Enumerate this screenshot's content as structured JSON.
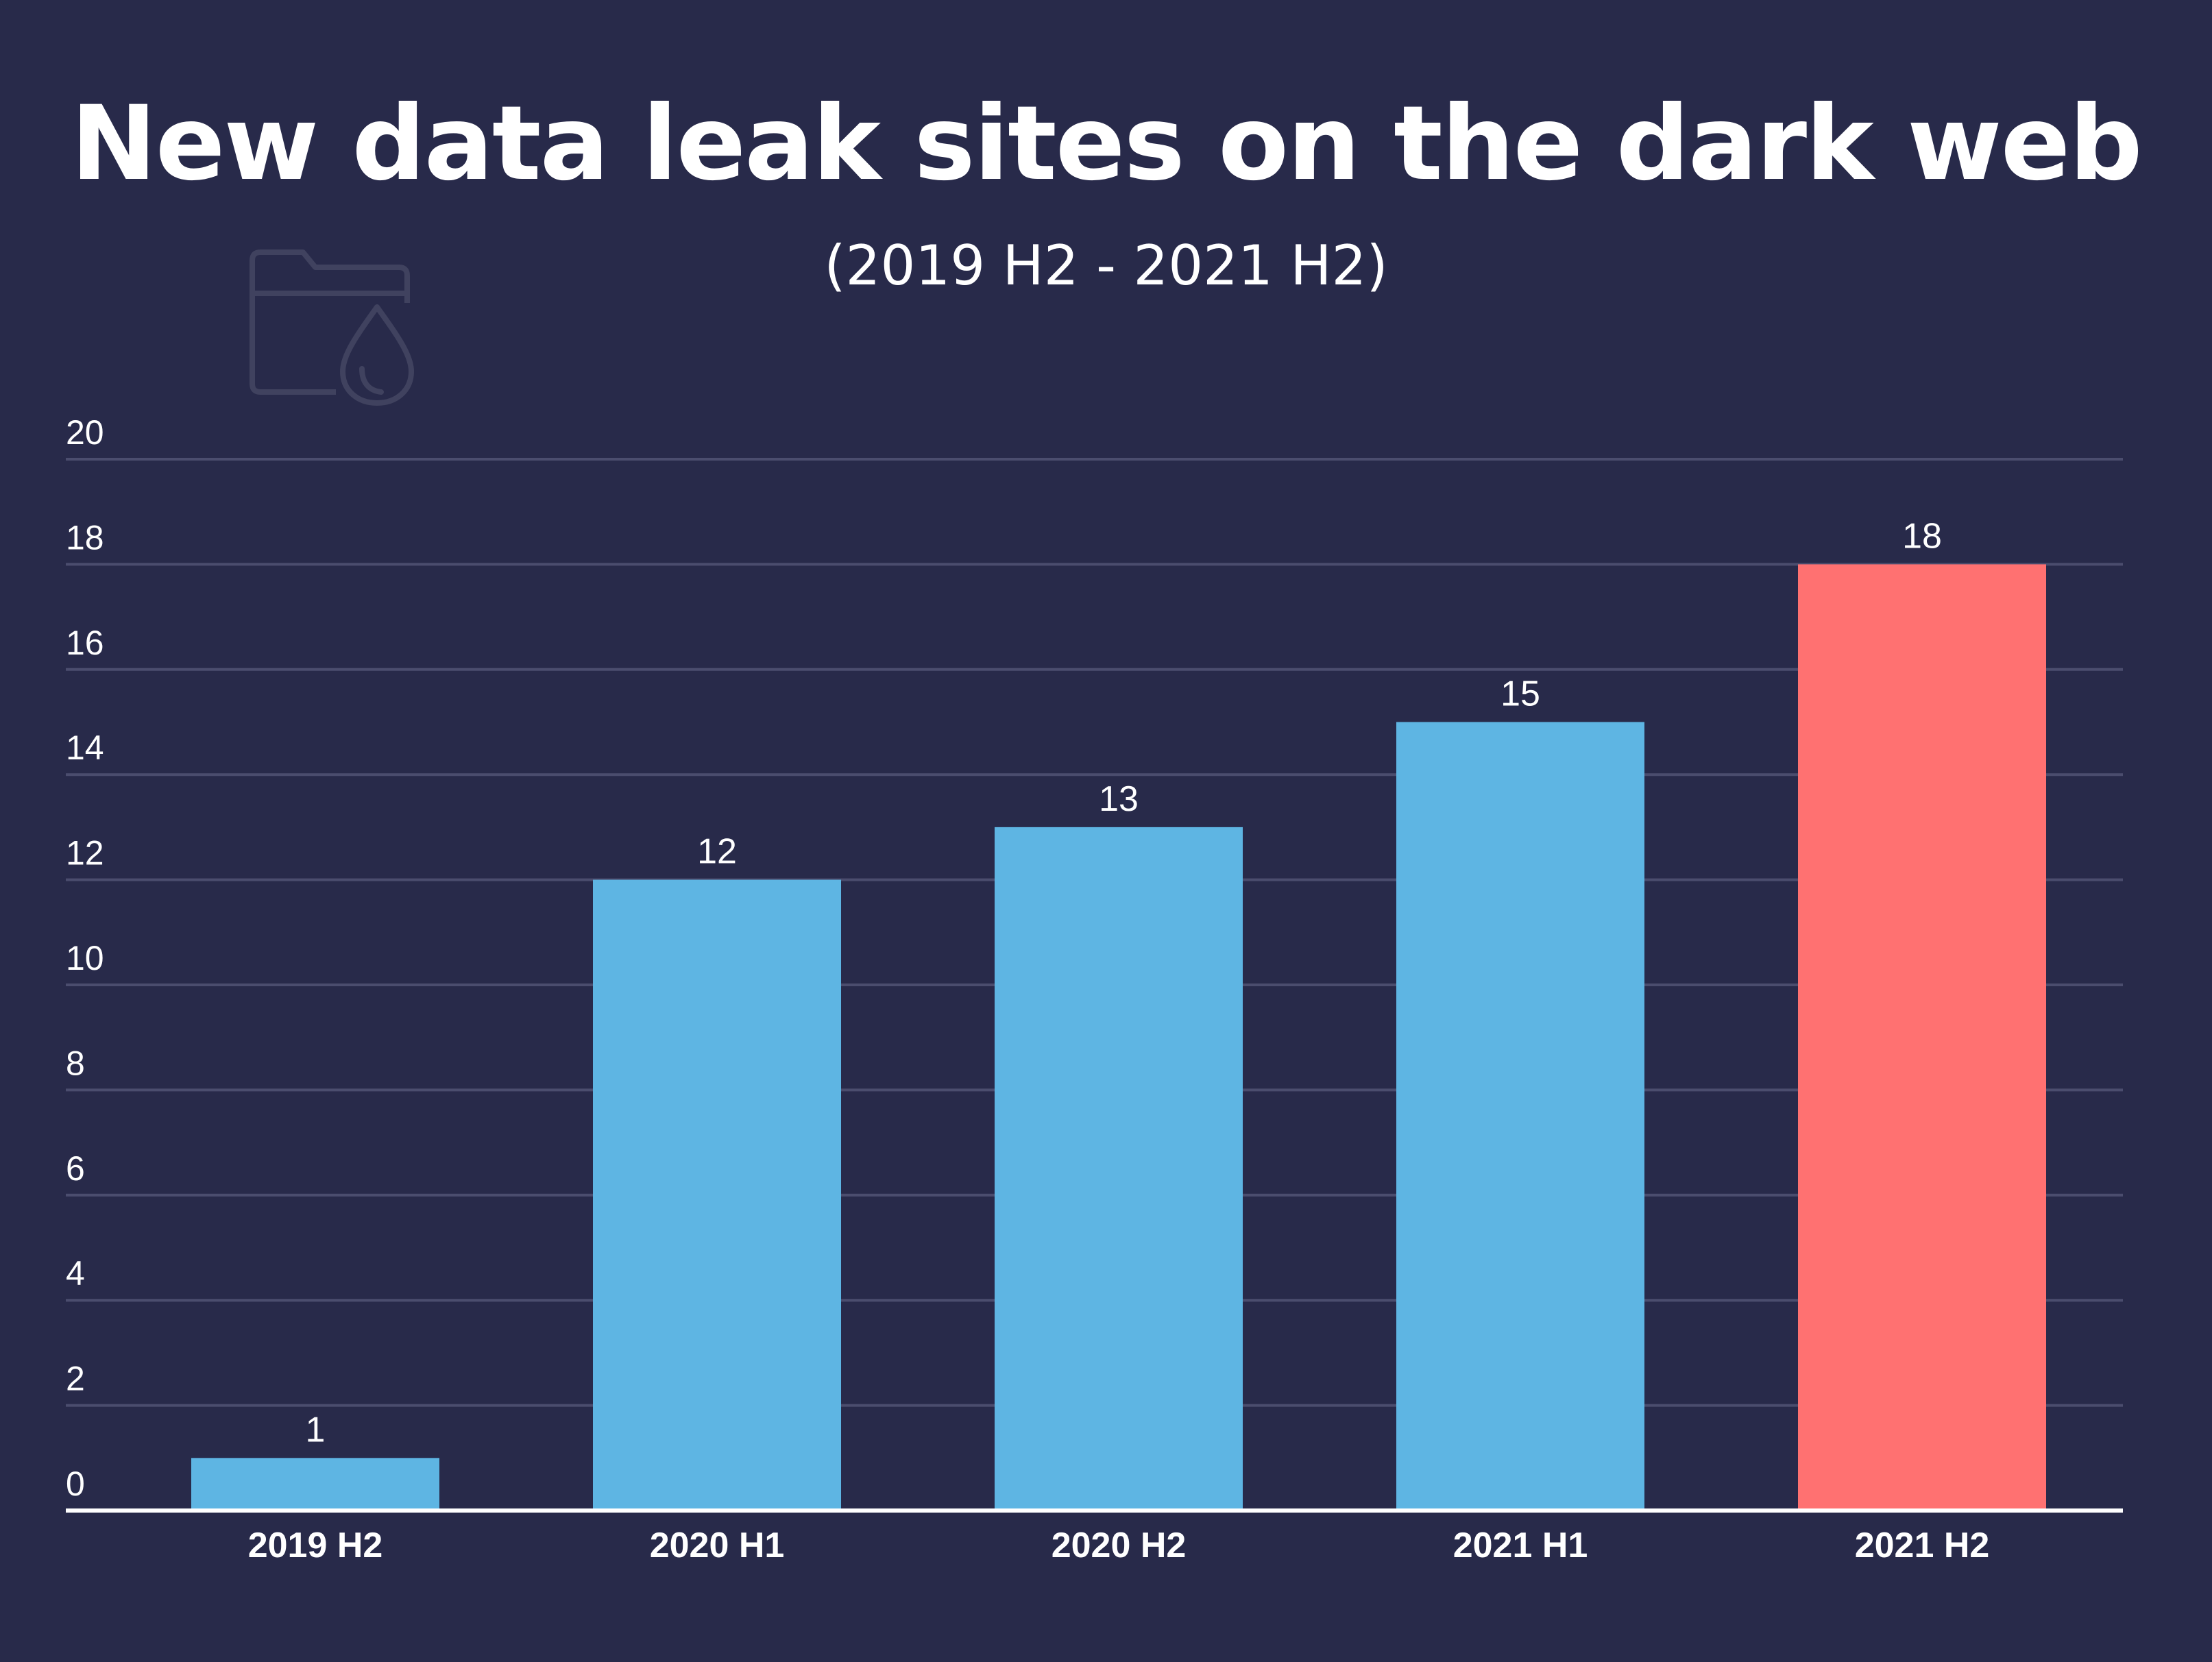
{
  "chart_data": {
    "type": "bar",
    "title": "New data leak sites on the dark web",
    "subtitle": "(2019 H2 - 2021 H2)",
    "categories": [
      "2019 H2",
      "2020 H1",
      "2020 H2",
      "2021 H1",
      "2021 H2"
    ],
    "values": [
      1,
      12,
      13,
      15,
      18
    ],
    "data_labels": [
      "1",
      "12",
      "13",
      "15",
      "18"
    ],
    "ylim": [
      0,
      20
    ],
    "yticks": [
      0,
      2,
      4,
      6,
      8,
      10,
      12,
      14,
      16,
      18,
      20
    ],
    "ytick_labels": [
      "0",
      "2",
      "4",
      "6",
      "8",
      "10",
      "12",
      "14",
      "16",
      "18",
      "20"
    ],
    "xlabel": "",
    "ylabel": "",
    "grid": true,
    "legend": "none",
    "colors": {
      "background": "#282a4a",
      "bar_default": "#5eb5e3",
      "bar_highlight": "#ff7171",
      "highlight_index": 4,
      "gridline": "#4b4d6e",
      "axis": "#ffffff",
      "text": "#ffffff",
      "icon": "#40425f"
    }
  },
  "decoration": {
    "icon": "folder-leak-icon"
  }
}
